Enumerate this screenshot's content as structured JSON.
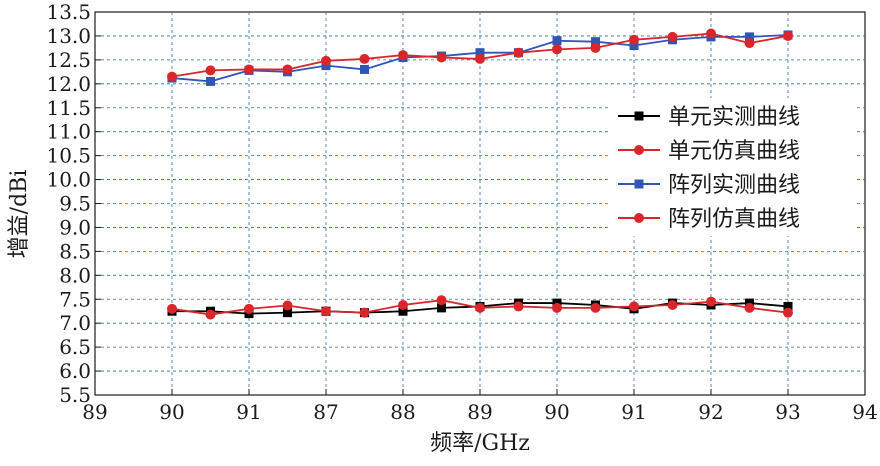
{
  "chart_data": {
    "type": "line",
    "xlabel": "频率/GHz",
    "ylabel": "增益/dBi",
    "x_tick_labels": [
      "89",
      "90",
      "91",
      "87",
      "88",
      "89",
      "90",
      "91",
      "92",
      "93",
      "94"
    ],
    "y_tick_labels": [
      "5.5",
      "6.0",
      "6.5",
      "7.0",
      "7.5",
      "8.0",
      "8.5",
      "9.0",
      "9.5",
      "10.0",
      "10.5",
      "11.0",
      "11.5",
      "12.0",
      "12.5",
      "13.0",
      "13.5"
    ],
    "ylim": [
      5.5,
      13.5
    ],
    "xlim": [
      0,
      10
    ],
    "grid": true,
    "legend_position": "right",
    "x": [
      1,
      1.5,
      2,
      2.5,
      3,
      3.5,
      4,
      4.5,
      5,
      5.5,
      6,
      6.5,
      7,
      7.5,
      8,
      8.5,
      9
    ],
    "series": [
      {
        "name": "单元实测曲线",
        "color": "#000000",
        "marker": "square",
        "values": [
          7.25,
          7.25,
          7.2,
          7.22,
          7.25,
          7.22,
          7.25,
          7.32,
          7.35,
          7.42,
          7.42,
          7.38,
          7.3,
          7.42,
          7.38,
          7.42,
          7.35
        ]
      },
      {
        "name": "单元仿真曲线",
        "color": "#d9262b",
        "marker": "circle",
        "values": [
          7.3,
          7.18,
          7.3,
          7.37,
          7.25,
          7.22,
          7.38,
          7.48,
          7.32,
          7.35,
          7.32,
          7.32,
          7.35,
          7.38,
          7.45,
          7.32,
          7.22
        ]
      },
      {
        "name": "阵列实测曲线",
        "color": "#2f55b5",
        "marker": "square",
        "values": [
          12.12,
          12.05,
          12.28,
          12.25,
          12.38,
          12.3,
          12.55,
          12.58,
          12.65,
          12.65,
          12.9,
          12.88,
          12.8,
          12.92,
          12.98,
          12.98,
          13.02
        ]
      },
      {
        "name": "阵列仿真曲线",
        "color": "#d9262b",
        "marker": "circle",
        "values": [
          12.15,
          12.28,
          12.3,
          12.3,
          12.48,
          12.52,
          12.6,
          12.55,
          12.52,
          12.65,
          12.72,
          12.75,
          12.92,
          12.98,
          13.05,
          12.85,
          13.0
        ]
      }
    ]
  }
}
